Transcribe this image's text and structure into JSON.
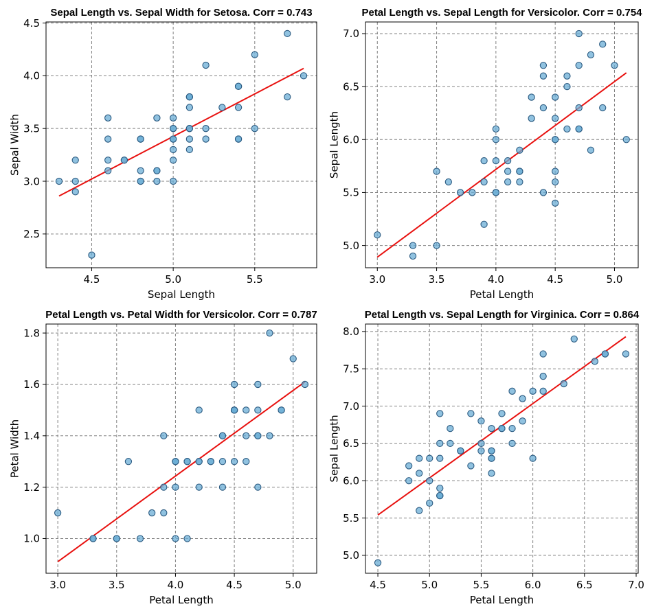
{
  "chart_data": [
    {
      "type": "scatter",
      "title": "Sepal Length vs. Sepal Width for Setosa. Corr = 0.743",
      "xlabel": "Sepal Length",
      "ylabel": "Sepal Width",
      "xlim": [
        4.22,
        5.88
      ],
      "ylim": [
        2.18,
        4.51
      ],
      "xticks": [
        4.5,
        5.0,
        5.5
      ],
      "yticks": [
        2.5,
        3.0,
        3.5,
        4.0,
        4.5
      ],
      "tick_decimals": 1,
      "grid": true,
      "points": [
        [
          5.1,
          3.5
        ],
        [
          4.9,
          3.0
        ],
        [
          4.7,
          3.2
        ],
        [
          4.6,
          3.1
        ],
        [
          5.0,
          3.6
        ],
        [
          5.4,
          3.9
        ],
        [
          4.6,
          3.4
        ],
        [
          5.0,
          3.4
        ],
        [
          4.4,
          2.9
        ],
        [
          4.9,
          3.1
        ],
        [
          5.4,
          3.7
        ],
        [
          4.8,
          3.4
        ],
        [
          4.8,
          3.0
        ],
        [
          4.3,
          3.0
        ],
        [
          5.8,
          4.0
        ],
        [
          5.7,
          4.4
        ],
        [
          5.4,
          3.9
        ],
        [
          5.1,
          3.5
        ],
        [
          5.7,
          3.8
        ],
        [
          5.1,
          3.8
        ],
        [
          5.4,
          3.4
        ],
        [
          5.1,
          3.7
        ],
        [
          4.6,
          3.6
        ],
        [
          5.1,
          3.3
        ],
        [
          4.8,
          3.4
        ],
        [
          5.0,
          3.0
        ],
        [
          5.0,
          3.4
        ],
        [
          5.2,
          3.5
        ],
        [
          5.2,
          3.4
        ],
        [
          4.7,
          3.2
        ],
        [
          4.8,
          3.1
        ],
        [
          5.4,
          3.4
        ],
        [
          5.2,
          4.1
        ],
        [
          5.5,
          4.2
        ],
        [
          4.9,
          3.1
        ],
        [
          5.0,
          3.2
        ],
        [
          5.5,
          3.5
        ],
        [
          4.9,
          3.6
        ],
        [
          4.4,
          3.0
        ],
        [
          5.1,
          3.4
        ],
        [
          5.0,
          3.5
        ],
        [
          4.5,
          2.3
        ],
        [
          4.4,
          3.2
        ],
        [
          5.0,
          3.5
        ],
        [
          5.1,
          3.8
        ],
        [
          4.8,
          3.0
        ],
        [
          5.1,
          3.8
        ],
        [
          4.6,
          3.2
        ],
        [
          5.3,
          3.7
        ],
        [
          5.0,
          3.3
        ]
      ],
      "fit_line": [
        [
          4.3,
          2.86
        ],
        [
          5.8,
          4.07
        ]
      ]
    },
    {
      "type": "scatter",
      "title": "Petal Length vs. Sepal Length for Versicolor. Corr = 0.754",
      "xlabel": "Petal Length",
      "ylabel": "Sepal Length",
      "xlim": [
        2.9,
        5.2
      ],
      "ylim": [
        4.79,
        7.11
      ],
      "xticks": [
        3.0,
        3.5,
        4.0,
        4.5,
        5.0
      ],
      "yticks": [
        5.0,
        5.5,
        6.0,
        6.5,
        7.0
      ],
      "tick_decimals": 1,
      "grid": true,
      "points": [
        [
          4.7,
          7.0
        ],
        [
          4.5,
          6.4
        ],
        [
          4.9,
          6.9
        ],
        [
          4.0,
          5.5
        ],
        [
          4.6,
          6.5
        ],
        [
          4.5,
          5.7
        ],
        [
          4.7,
          6.3
        ],
        [
          3.3,
          4.9
        ],
        [
          4.6,
          6.6
        ],
        [
          3.9,
          5.2
        ],
        [
          3.5,
          5.0
        ],
        [
          4.2,
          5.9
        ],
        [
          4.0,
          6.0
        ],
        [
          4.7,
          6.1
        ],
        [
          3.6,
          5.6
        ],
        [
          4.4,
          6.7
        ],
        [
          4.5,
          5.6
        ],
        [
          4.1,
          5.8
        ],
        [
          4.5,
          6.2
        ],
        [
          3.9,
          5.6
        ],
        [
          4.8,
          5.9
        ],
        [
          4.0,
          6.1
        ],
        [
          4.9,
          6.3
        ],
        [
          4.7,
          6.1
        ],
        [
          4.3,
          6.4
        ],
        [
          4.4,
          6.6
        ],
        [
          4.8,
          6.8
        ],
        [
          5.0,
          6.7
        ],
        [
          4.5,
          6.0
        ],
        [
          3.5,
          5.7
        ],
        [
          3.8,
          5.5
        ],
        [
          3.7,
          5.5
        ],
        [
          3.9,
          5.8
        ],
        [
          5.1,
          6.0
        ],
        [
          4.5,
          5.4
        ],
        [
          4.5,
          6.0
        ],
        [
          4.7,
          6.7
        ],
        [
          4.4,
          6.3
        ],
        [
          4.1,
          5.6
        ],
        [
          4.0,
          5.5
        ],
        [
          4.4,
          5.5
        ],
        [
          4.6,
          6.1
        ],
        [
          4.0,
          5.8
        ],
        [
          3.3,
          5.0
        ],
        [
          4.2,
          5.6
        ],
        [
          4.2,
          5.7
        ],
        [
          4.2,
          5.7
        ],
        [
          4.3,
          6.2
        ],
        [
          3.0,
          5.1
        ],
        [
          4.1,
          5.7
        ]
      ],
      "fit_line": [
        [
          3.0,
          4.89
        ],
        [
          5.1,
          6.63
        ]
      ]
    },
    {
      "type": "scatter",
      "title": "Petal Length vs. Petal Width for Versicolor. Corr = 0.787",
      "xlabel": "Petal Length",
      "ylabel": "Petal Width",
      "xlim": [
        2.9,
        5.2
      ],
      "ylim": [
        0.865,
        1.835
      ],
      "xticks": [
        3.0,
        3.5,
        4.0,
        4.5,
        5.0
      ],
      "yticks": [
        1.0,
        1.2,
        1.4,
        1.6,
        1.8
      ],
      "tick_decimals": 1,
      "grid": true,
      "points": [
        [
          4.7,
          1.4
        ],
        [
          4.5,
          1.5
        ],
        [
          4.9,
          1.5
        ],
        [
          4.0,
          1.3
        ],
        [
          4.6,
          1.5
        ],
        [
          4.5,
          1.3
        ],
        [
          4.7,
          1.6
        ],
        [
          3.3,
          1.0
        ],
        [
          4.6,
          1.3
        ],
        [
          3.9,
          1.4
        ],
        [
          3.5,
          1.0
        ],
        [
          4.2,
          1.5
        ],
        [
          4.0,
          1.0
        ],
        [
          4.7,
          1.4
        ],
        [
          3.6,
          1.3
        ],
        [
          4.4,
          1.4
        ],
        [
          4.5,
          1.5
        ],
        [
          4.1,
          1.0
        ],
        [
          4.5,
          1.5
        ],
        [
          3.9,
          1.1
        ],
        [
          4.8,
          1.8
        ],
        [
          4.0,
          1.3
        ],
        [
          4.9,
          1.5
        ],
        [
          4.7,
          1.2
        ],
        [
          4.3,
          1.3
        ],
        [
          4.4,
          1.4
        ],
        [
          4.8,
          1.4
        ],
        [
          5.0,
          1.7
        ],
        [
          4.5,
          1.5
        ],
        [
          3.5,
          1.0
        ],
        [
          3.8,
          1.1
        ],
        [
          3.7,
          1.0
        ],
        [
          3.9,
          1.2
        ],
        [
          5.1,
          1.6
        ],
        [
          4.5,
          1.5
        ],
        [
          4.5,
          1.6
        ],
        [
          4.7,
          1.5
        ],
        [
          4.4,
          1.3
        ],
        [
          4.1,
          1.3
        ],
        [
          4.0,
          1.3
        ],
        [
          4.4,
          1.2
        ],
        [
          4.6,
          1.4
        ],
        [
          4.0,
          1.2
        ],
        [
          3.3,
          1.0
        ],
        [
          4.2,
          1.3
        ],
        [
          4.2,
          1.2
        ],
        [
          4.2,
          1.3
        ],
        [
          4.3,
          1.3
        ],
        [
          3.0,
          1.1
        ],
        [
          4.1,
          1.3
        ]
      ],
      "fit_line": [
        [
          3.0,
          0.91
        ],
        [
          5.1,
          1.61
        ]
      ]
    },
    {
      "type": "scatter",
      "title": "Petal Length vs. Sepal Length for Virginica. Corr = 0.864",
      "xlabel": "Petal Length",
      "ylabel": "Sepal Length",
      "xlim": [
        4.38,
        7.02
      ],
      "ylim": [
        4.76,
        8.1
      ],
      "xticks": [
        4.5,
        5.0,
        5.5,
        6.0,
        6.5,
        7.0
      ],
      "yticks": [
        5.0,
        5.5,
        6.0,
        6.5,
        7.0,
        7.5,
        8.0
      ],
      "tick_decimals": 1,
      "grid": true,
      "points": [
        [
          6.0,
          6.3
        ],
        [
          5.1,
          5.8
        ],
        [
          5.9,
          7.1
        ],
        [
          5.6,
          6.3
        ],
        [
          5.8,
          6.5
        ],
        [
          6.6,
          7.6
        ],
        [
          4.5,
          4.9
        ],
        [
          6.3,
          7.3
        ],
        [
          5.8,
          6.7
        ],
        [
          6.1,
          7.2
        ],
        [
          5.1,
          6.5
        ],
        [
          5.3,
          6.4
        ],
        [
          5.5,
          6.8
        ],
        [
          5.0,
          5.7
        ],
        [
          5.1,
          5.8
        ],
        [
          5.3,
          6.4
        ],
        [
          5.5,
          6.5
        ],
        [
          6.7,
          7.7
        ],
        [
          6.9,
          7.7
        ],
        [
          5.0,
          6.0
        ],
        [
          5.7,
          6.9
        ],
        [
          4.9,
          5.6
        ],
        [
          6.7,
          7.7
        ],
        [
          4.9,
          6.3
        ],
        [
          5.7,
          6.7
        ],
        [
          6.0,
          7.2
        ],
        [
          4.8,
          6.2
        ],
        [
          4.9,
          6.1
        ],
        [
          5.6,
          6.4
        ],
        [
          5.8,
          7.2
        ],
        [
          6.1,
          7.4
        ],
        [
          6.4,
          7.9
        ],
        [
          5.6,
          6.4
        ],
        [
          5.1,
          6.3
        ],
        [
          5.6,
          6.1
        ],
        [
          6.1,
          7.7
        ],
        [
          5.6,
          6.3
        ],
        [
          5.5,
          6.4
        ],
        [
          4.8,
          6.0
        ],
        [
          5.4,
          6.9
        ],
        [
          5.6,
          6.7
        ],
        [
          5.1,
          6.9
        ],
        [
          5.1,
          5.8
        ],
        [
          5.9,
          6.8
        ],
        [
          5.7,
          6.7
        ],
        [
          5.2,
          6.7
        ],
        [
          5.0,
          6.3
        ],
        [
          5.2,
          6.5
        ],
        [
          5.4,
          6.2
        ],
        [
          5.1,
          5.9
        ]
      ],
      "fit_line": [
        [
          4.5,
          5.54
        ],
        [
          6.9,
          7.93
        ]
      ]
    }
  ]
}
